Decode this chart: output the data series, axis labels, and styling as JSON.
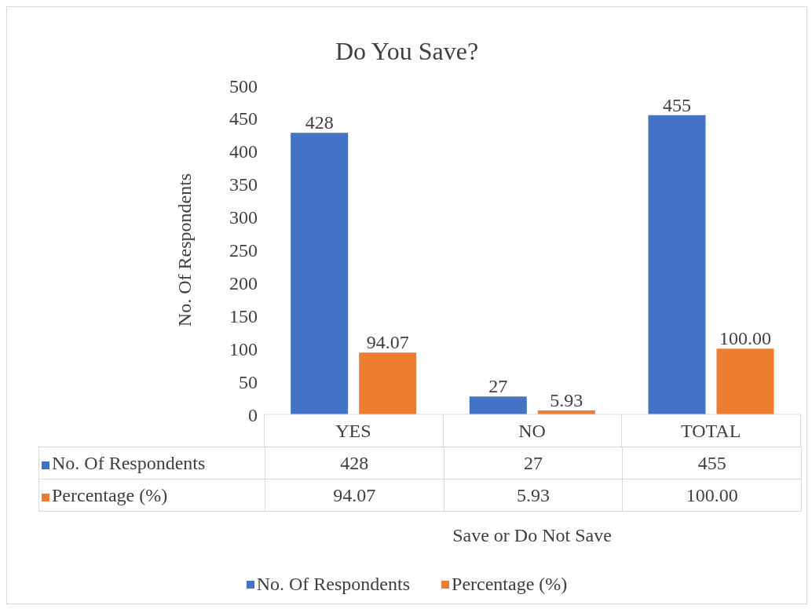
{
  "chart_data": {
    "type": "bar",
    "title": "Do You Save?",
    "xlabel": "Save or Do Not Save",
    "ylabel": "No. Of Respondents",
    "categories": [
      "YES",
      "NO",
      "TOTAL"
    ],
    "series": [
      {
        "name": "No. Of Respondents",
        "color": "#4472c4",
        "values": [
          428,
          27,
          455
        ],
        "value_labels": [
          "428",
          "27",
          "455"
        ]
      },
      {
        "name": "Percentage (%)",
        "color": "#ed7d31",
        "values": [
          94.07,
          5.93,
          100.0
        ],
        "value_labels": [
          "94.07",
          "5.93",
          "100.00"
        ]
      }
    ],
    "ylim": [
      0,
      500
    ],
    "yticks": [
      0,
      50,
      100,
      150,
      200,
      250,
      300,
      350,
      400,
      450,
      500
    ],
    "legend": "bottom"
  }
}
